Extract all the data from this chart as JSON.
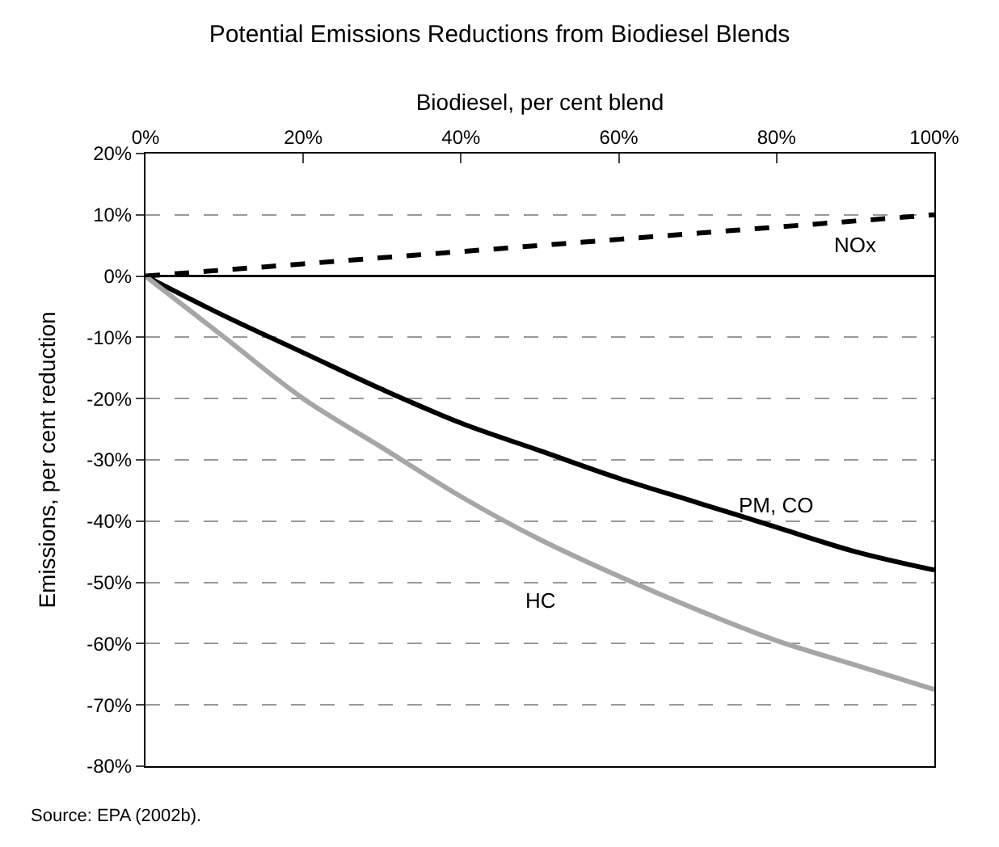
{
  "chart_data": {
    "type": "line",
    "title": "Potential Emissions Reductions from Biodiesel Blends",
    "xlabel": "Biodiesel, per cent blend",
    "ylabel": "Emissions, per cent reduction",
    "x": [
      0,
      10,
      20,
      30,
      40,
      50,
      60,
      70,
      80,
      90,
      100
    ],
    "series": [
      {
        "name": "NOx",
        "color": "#000000",
        "line_style": "dashed",
        "values": [
          0,
          1,
          2,
          3,
          4,
          5,
          6,
          7,
          8,
          9,
          10
        ]
      },
      {
        "name": "PM, CO",
        "color": "#000000",
        "line_style": "solid",
        "values": [
          0,
          -6.5,
          -12.5,
          -18.5,
          -24,
          -28.5,
          -33,
          -37,
          -41,
          -45,
          -48
        ]
      },
      {
        "name": "HC",
        "color": "#a6a6a6",
        "line_style": "solid",
        "values": [
          0,
          -10,
          -20,
          -28,
          -36,
          -43,
          -49,
          -54.5,
          -59.5,
          -63.5,
          -67.5
        ]
      }
    ],
    "xlim": [
      0,
      100
    ],
    "xticks": [
      {
        "value": 0,
        "label": "0%"
      },
      {
        "value": 20,
        "label": "20%"
      },
      {
        "value": 40,
        "label": "40%"
      },
      {
        "value": 60,
        "label": "60%"
      },
      {
        "value": 80,
        "label": "80%"
      },
      {
        "value": 100,
        "label": "100%"
      }
    ],
    "ylim": [
      -80,
      20
    ],
    "yticks": [
      {
        "value": 20,
        "label": "20%"
      },
      {
        "value": 10,
        "label": "10%"
      },
      {
        "value": 0,
        "label": "0%"
      },
      {
        "value": -10,
        "label": "-10%"
      },
      {
        "value": -20,
        "label": "-20%"
      },
      {
        "value": -30,
        "label": "-30%"
      },
      {
        "value": -40,
        "label": "-40%"
      },
      {
        "value": -50,
        "label": "-50%"
      },
      {
        "value": -60,
        "label": "-60%"
      },
      {
        "value": -70,
        "label": "-70%"
      },
      {
        "value": -80,
        "label": "-80%"
      }
    ],
    "grid": "y",
    "ref_lines": [
      {
        "axis": "y",
        "value": 0,
        "color": "#000000",
        "line_style": "solid"
      }
    ],
    "legend": false,
    "annotations": [
      "Source: EPA (2002b)."
    ]
  }
}
